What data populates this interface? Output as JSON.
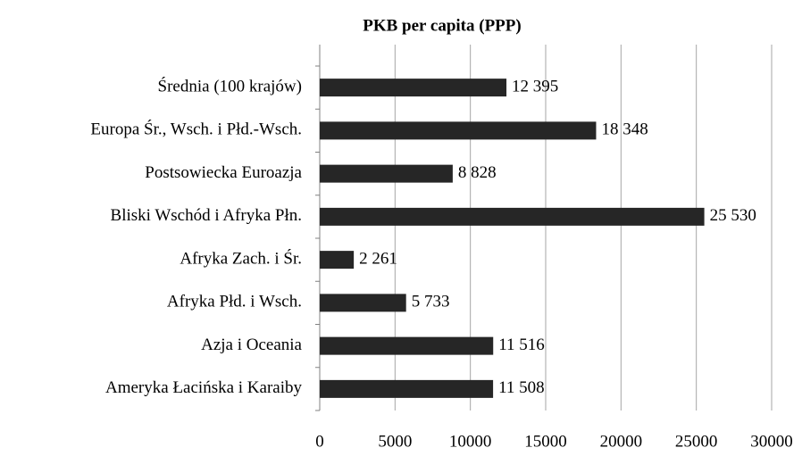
{
  "chart_data": {
    "type": "bar",
    "orientation": "horizontal",
    "title": "PKB per capita (PPP)",
    "categories": [
      "Średnia (100 krajów)",
      "Europa Śr., Wsch. i Płd.-Wsch.",
      "Postsowiecka Euroazja",
      "Bliski Wschód i Afryka Płn.",
      "Afryka Zach. i Śr.",
      "Afryka Płd. i Wsch.",
      "Azja i Oceania",
      "Ameryka Łacińska i Karaiby"
    ],
    "values": [
      12395,
      18348,
      8828,
      25530,
      2261,
      5733,
      11516,
      11508
    ],
    "value_labels": [
      "12 395",
      "18 348",
      "8 828",
      "25 530",
      "2 261",
      "5 733",
      "11 516",
      "11 508"
    ],
    "color": "#262626",
    "xlim": [
      0,
      30000
    ],
    "xticks": [
      0,
      5000,
      10000,
      15000,
      20000,
      25000,
      30000
    ],
    "grid": true
  }
}
